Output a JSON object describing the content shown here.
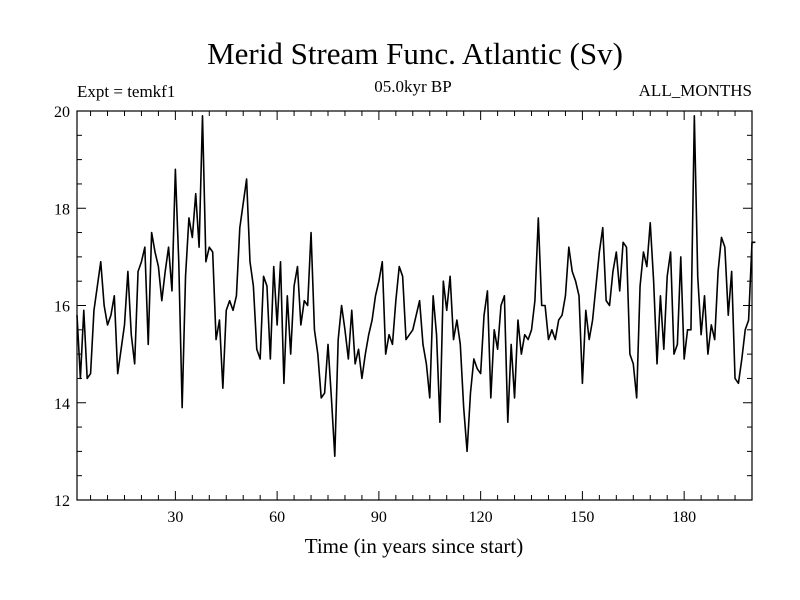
{
  "chart_data": {
    "type": "line",
    "title": "Merid Stream Func. Atlantic (Sv)",
    "subtitle_left": "Expt = temkf1",
    "subtitle_center": "05.0kyr BP",
    "subtitle_right": "ALL_MONTHS",
    "xlabel": "Time (in years since start)",
    "ylabel": "",
    "xlim": [
      1,
      200
    ],
    "ylim": [
      12,
      20
    ],
    "xticks": [
      30,
      60,
      90,
      120,
      150,
      180
    ],
    "yticks": [
      12,
      14,
      16,
      18,
      20
    ],
    "x_start": 1,
    "x_step": 1,
    "series": [
      {
        "name": "Merid Stream Func. Atlantic",
        "values": [
          15.8,
          14.5,
          15.9,
          14.5,
          14.6,
          15.9,
          16.4,
          16.9,
          16.0,
          15.6,
          15.8,
          16.2,
          14.6,
          15.1,
          15.6,
          16.7,
          15.4,
          14.8,
          16.7,
          16.9,
          17.2,
          15.2,
          17.5,
          17.1,
          16.8,
          16.1,
          16.7,
          17.2,
          16.3,
          18.8,
          16.9,
          13.9,
          16.6,
          17.8,
          17.4,
          18.3,
          17.2,
          19.9,
          16.9,
          17.2,
          17.1,
          15.3,
          15.7,
          14.3,
          15.9,
          16.1,
          15.9,
          16.2,
          17.6,
          18.1,
          18.6,
          16.9,
          16.4,
          15.1,
          14.9,
          16.6,
          16.4,
          14.9,
          16.8,
          15.6,
          16.9,
          14.4,
          16.2,
          15.0,
          16.4,
          16.8,
          15.6,
          16.1,
          16.0,
          17.5,
          15.5,
          15.0,
          14.1,
          14.2,
          15.2,
          14.1,
          12.9,
          15.3,
          16.0,
          15.5,
          14.9,
          15.9,
          14.8,
          15.1,
          14.5,
          15.0,
          15.4,
          15.7,
          16.2,
          16.5,
          16.9,
          15.0,
          15.4,
          15.2,
          16.1,
          16.8,
          16.6,
          15.3,
          15.4,
          15.5,
          15.8,
          16.1,
          15.2,
          14.8,
          14.1,
          16.2,
          15.4,
          13.6,
          16.5,
          15.9,
          16.6,
          15.3,
          15.7,
          15.2,
          13.9,
          13.0,
          14.2,
          14.9,
          14.7,
          14.6,
          15.8,
          16.3,
          14.1,
          15.5,
          15.1,
          16.0,
          16.2,
          13.6,
          15.2,
          14.1,
          15.7,
          15.0,
          15.4,
          15.3,
          15.5,
          16.1,
          17.8,
          16.0,
          16.0,
          15.3,
          15.5,
          15.3,
          15.7,
          15.8,
          16.2,
          17.2,
          16.7,
          16.5,
          16.2,
          14.4,
          15.9,
          15.3,
          15.7,
          16.4,
          17.1,
          17.6,
          16.1,
          16.0,
          16.7,
          17.1,
          16.3,
          17.3,
          17.2,
          15.0,
          14.8,
          14.1,
          16.4,
          17.1,
          16.8,
          17.7,
          16.5,
          14.8,
          16.2,
          15.1,
          16.6,
          17.1,
          15.0,
          15.2,
          17.0,
          14.9,
          15.5,
          15.5,
          19.9,
          16.6,
          15.4,
          16.2,
          15.0,
          15.6,
          15.3,
          16.7,
          17.4,
          17.2,
          15.8,
          16.7,
          14.5,
          14.4,
          14.9,
          15.5,
          15.7,
          17.3,
          17.3
        ]
      }
    ]
  }
}
